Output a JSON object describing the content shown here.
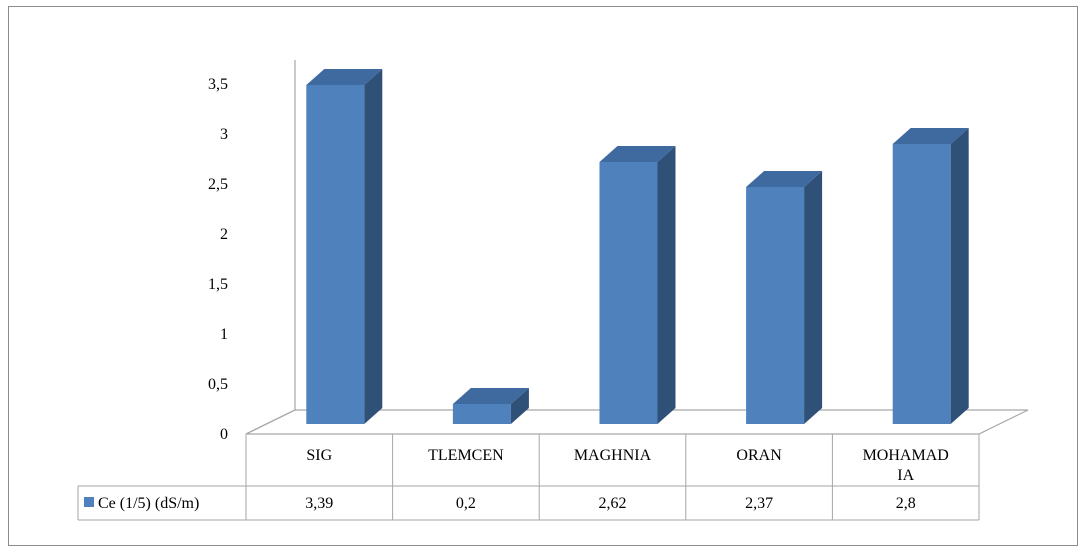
{
  "chart_data": {
    "type": "bar",
    "style": "3d-column-with-data-table",
    "categories": [
      "SIG",
      "TLEMCEN",
      "MAGHNIA",
      "ORAN",
      "MOHAMADIA"
    ],
    "category_lines": [
      [
        "SIG"
      ],
      [
        "TLEMCEN"
      ],
      [
        "MAGHNIA"
      ],
      [
        "ORAN"
      ],
      [
        "MOHAMAD",
        "IA"
      ]
    ],
    "series": [
      {
        "name": "Ce (1/5) (dS/m)",
        "values": [
          3.39,
          0.2,
          2.62,
          2.37,
          2.8
        ],
        "value_labels": [
          "3,39",
          "0,2",
          "2,62",
          "2,37",
          "2,8"
        ]
      }
    ],
    "yticks": [
      "0",
      "0,5",
      "1",
      "1,5",
      "2",
      "2,5",
      "3",
      "3,5"
    ],
    "ylim": [
      0,
      3.5
    ],
    "grid": false,
    "legend": "data-table",
    "colors": {
      "front": "#4f81bd",
      "side": "#2f5077",
      "top": "#3f6aa0",
      "axis": "#a6a6a6"
    }
  }
}
